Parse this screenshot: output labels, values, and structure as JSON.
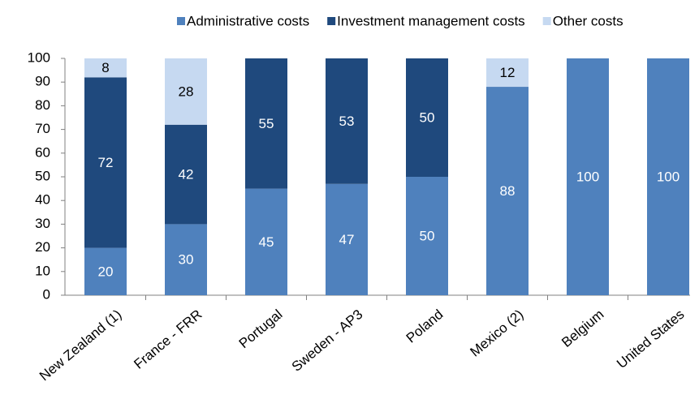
{
  "chart_data": {
    "type": "stacked_bar",
    "categories": [
      "New Zealand (1)",
      "France - FRR",
      "Portugal",
      "Sweden - AP3",
      "Poland",
      "Mexico (2)",
      "Belgium",
      "United States"
    ],
    "series": [
      {
        "name": "Administrative costs",
        "color": "#4f81bd",
        "values": [
          20,
          30,
          45,
          47,
          50,
          88,
          100,
          100
        ]
      },
      {
        "name": "Investment management costs",
        "color": "#1f497d",
        "values": [
          72,
          42,
          55,
          53,
          50,
          0,
          0,
          0
        ]
      },
      {
        "name": "Other costs",
        "color": "#c6d9f1",
        "values": [
          8,
          28,
          0,
          0,
          0,
          12,
          0,
          0
        ]
      }
    ],
    "ylim": [
      0,
      100
    ],
    "yticks": [
      0,
      10,
      20,
      30,
      40,
      50,
      60,
      70,
      80,
      90,
      100
    ],
    "grid": false,
    "legend": "top"
  }
}
